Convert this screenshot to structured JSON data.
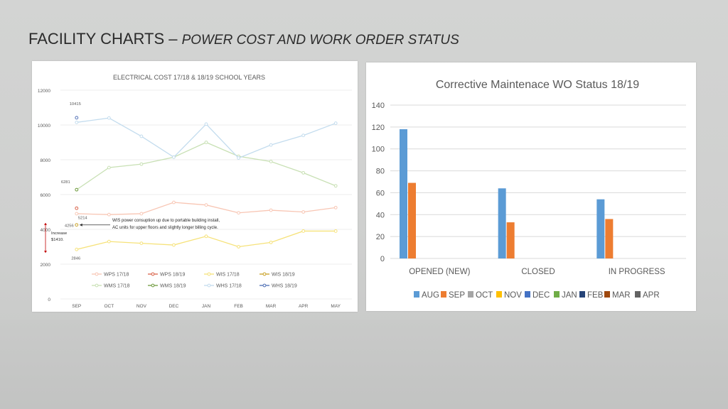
{
  "slide": {
    "title_main": "FACILITY CHARTS – ",
    "title_sub": "POWER COST AND WORK ORDER STATUS"
  },
  "charts": {
    "left": {
      "type": "line",
      "title": "ELECTRICAL COST  17/18  & 18/19 SCHOOL YEARS",
      "categories": [
        "SEP",
        "OCT",
        "NOV",
        "DEC",
        "JAN",
        "FEB",
        "MAR",
        "APR",
        "MAY"
      ],
      "ylim": [
        0,
        12000
      ],
      "yticks": [
        0,
        2000,
        4000,
        6000,
        8000,
        10000,
        12000
      ],
      "grid": true,
      "series": [
        {
          "name": "WPS 17/18",
          "color": "#f8c6b4",
          "values": [
            4900,
            4850,
            4900,
            5550,
            5400,
            4950,
            5100,
            5000,
            5250
          ]
        },
        {
          "name": "WPS 18/19",
          "color": "#d9634a",
          "values": [
            5214
          ]
        },
        {
          "name": "WIS 17/18",
          "color": "#f6e27a",
          "values": [
            2846,
            3300,
            3200,
            3100,
            3600,
            3000,
            3250,
            3900,
            3900
          ]
        },
        {
          "name": "WIS 18/19",
          "color": "#c9a227",
          "values": [
            4256
          ]
        },
        {
          "name": "WMS 17/18",
          "color": "#c8e0b4",
          "values": [
            6281,
            7550,
            7750,
            8150,
            9000,
            8200,
            7900,
            7250,
            6500
          ]
        },
        {
          "name": "WMS 18/19",
          "color": "#6f9a3e",
          "values": [
            6281
          ]
        },
        {
          "name": "WHS 17/18",
          "color": "#c3dcee",
          "values": [
            10150,
            10400,
            9350,
            8150,
            10050,
            8100,
            8850,
            9400,
            10100
          ]
        },
        {
          "name": "WHS 18/19",
          "color": "#4f6fb5",
          "values": [
            10415
          ]
        }
      ],
      "data_labels": [
        "10415",
        "6281",
        "5214",
        "4256",
        "2846"
      ],
      "annotation": {
        "line1": "WIS power consuption up due to  portable building install,",
        "line2": "AC units for upper floors and  slightly longer billing cycle.",
        "increase1": "Increase",
        "increase2": "$1410."
      },
      "legend_position": "bottom"
    },
    "right": {
      "type": "bar",
      "title": "Corrective Maintenace WO Status 18/19",
      "categories": [
        "OPENED (NEW)",
        "CLOSED",
        "IN PROGRESS"
      ],
      "ylim": [
        0,
        140
      ],
      "yticks": [
        0,
        20,
        40,
        60,
        80,
        100,
        120,
        140
      ],
      "grid": true,
      "series": [
        {
          "name": "AUG",
          "color": "#5b9bd5",
          "values": [
            118,
            64,
            54
          ]
        },
        {
          "name": "SEP",
          "color": "#ed7d31",
          "values": [
            69,
            33,
            36
          ]
        },
        {
          "name": "OCT",
          "color": "#a5a5a5",
          "values": [
            null,
            null,
            null
          ]
        },
        {
          "name": "NOV",
          "color": "#ffc000",
          "values": [
            null,
            null,
            null
          ]
        },
        {
          "name": "DEC",
          "color": "#4472c4",
          "values": [
            null,
            null,
            null
          ]
        },
        {
          "name": "JAN",
          "color": "#70ad47",
          "values": [
            null,
            null,
            null
          ]
        },
        {
          "name": "FEB",
          "color": "#264478",
          "values": [
            null,
            null,
            null
          ]
        },
        {
          "name": "MAR",
          "color": "#9e480e",
          "values": [
            null,
            null,
            null
          ]
        },
        {
          "name": "APR",
          "color": "#636363",
          "values": [
            null,
            null,
            null
          ]
        }
      ],
      "legend_position": "bottom"
    }
  }
}
